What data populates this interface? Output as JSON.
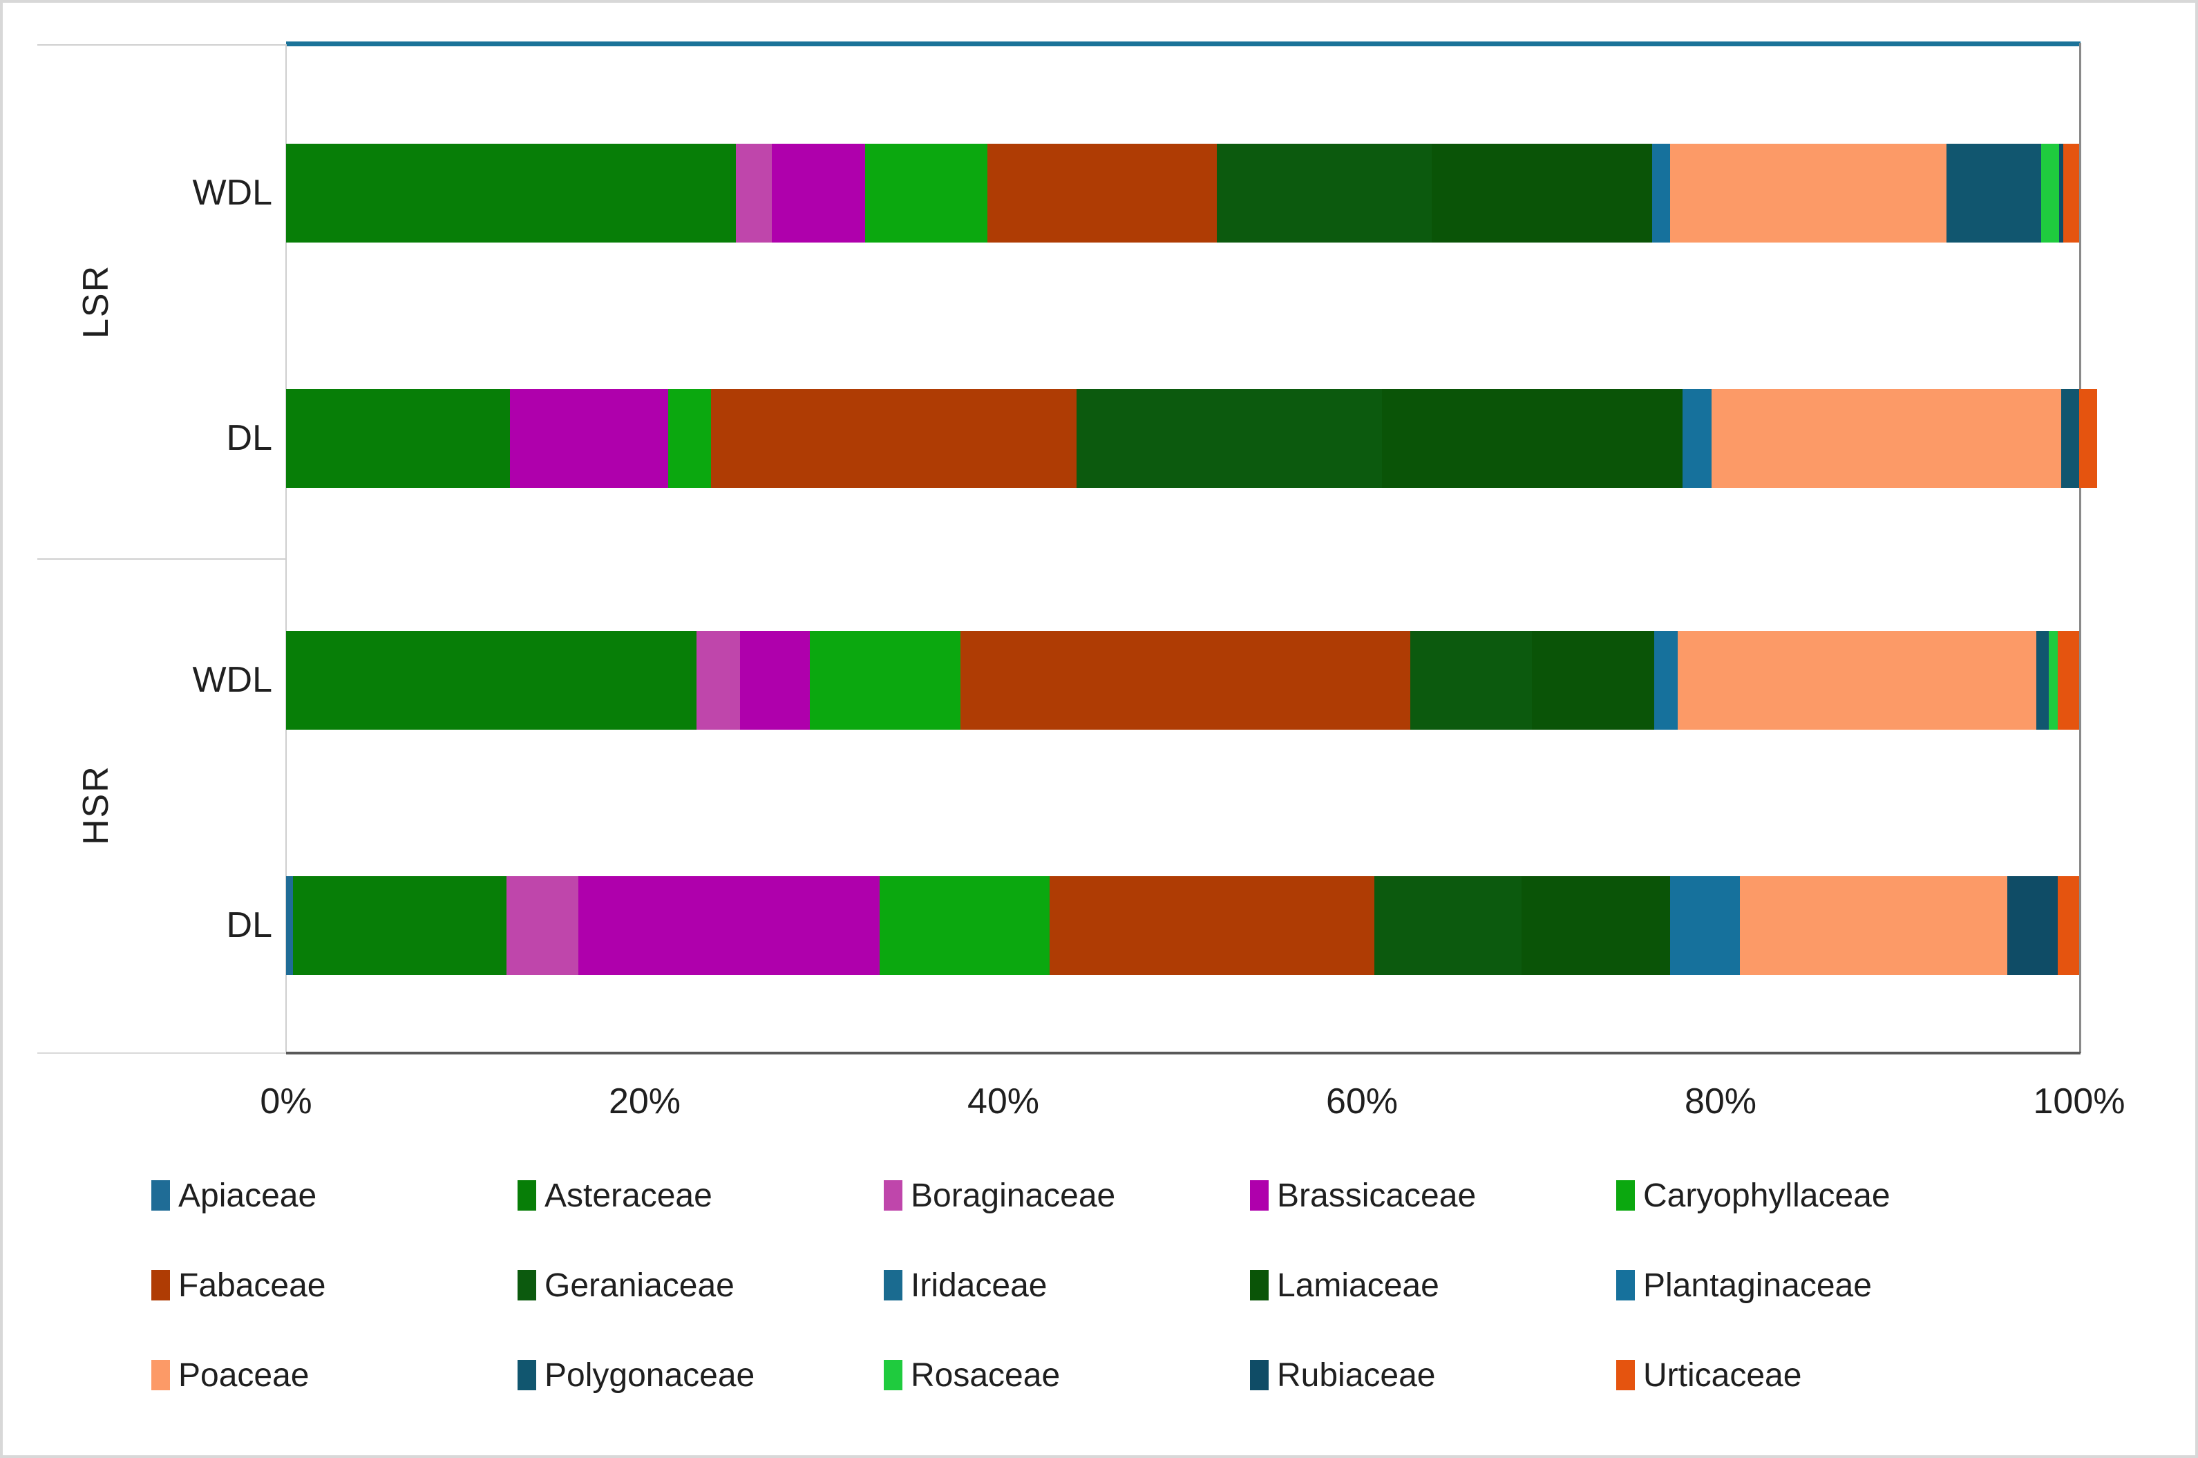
{
  "chart_data": {
    "type": "bar",
    "orientation": "horizontal",
    "stacked": true,
    "stacked_mode": "percent",
    "title": "",
    "xlabel": "",
    "ylabel": "",
    "grid": false,
    "legend_position": "bottom",
    "x_axis": {
      "min": 0,
      "max": 100,
      "unit": "%",
      "ticks": [
        "0%",
        "20%",
        "40%",
        "60%",
        "80%",
        "100%"
      ]
    },
    "group_labels": [
      "LSR",
      "HSR"
    ],
    "row_labels": [
      "WDL",
      "DL",
      "WDL",
      "DL"
    ],
    "categories": [
      "LSR WDL",
      "LSR DL",
      "HSR WDL",
      "HSR DL"
    ],
    "series": [
      {
        "name": "Apiaceae",
        "color": "#1F6C96",
        "values": [
          0,
          0,
          0,
          0.4
        ]
      },
      {
        "name": "Asteraceae",
        "color": "#077E07",
        "values": [
          25.1,
          12.5,
          22.9,
          11.9
        ]
      },
      {
        "name": "Boraginaceae",
        "color": "#BF46AB",
        "values": [
          2.0,
          0,
          2.4,
          4.0
        ]
      },
      {
        "name": "Brassicaceae",
        "color": "#AF00AC",
        "values": [
          5.2,
          8.8,
          3.9,
          16.8
        ]
      },
      {
        "name": "Caryophyllaceae",
        "color": "#0BA80F",
        "values": [
          6.8,
          2.4,
          8.4,
          9.5
        ]
      },
      {
        "name": "Fabaceae",
        "color": "#AF3C04",
        "values": [
          12.8,
          20.4,
          25.1,
          18.1
        ]
      },
      {
        "name": "Geraniaceae",
        "color": "#0C5A0E",
        "values": [
          12.0,
          17.0,
          6.8,
          8.2
        ]
      },
      {
        "name": "Iridaceae",
        "color": "#1A6B90",
        "values": [
          0,
          0,
          0,
          0
        ]
      },
      {
        "name": "Lamiaceae",
        "color": "#0A5407",
        "values": [
          12.3,
          16.8,
          6.8,
          8.3
        ]
      },
      {
        "name": "Plantaginaceae",
        "color": "#16719C",
        "values": [
          1.0,
          1.6,
          1.3,
          3.9
        ]
      },
      {
        "name": "Poaceae",
        "color": "#FC9A67",
        "values": [
          15.4,
          19.5,
          20.0,
          14.9
        ]
      },
      {
        "name": "Polygonaceae",
        "color": "#11566F",
        "values": [
          5.3,
          1.0,
          0.7,
          0
        ]
      },
      {
        "name": "Rosaceae",
        "color": "#1FCB3E",
        "values": [
          1.0,
          0,
          0.5,
          0
        ]
      },
      {
        "name": "Rubiaceae",
        "color": "#0F4C66",
        "values": [
          0.2,
          0,
          0,
          2.8
        ]
      },
      {
        "name": "Urticaceae",
        "color": "#E5540F",
        "values": [
          0.9,
          1.0,
          1.2,
          1.2
        ]
      }
    ],
    "accent_colors": {
      "plot_top_line": "#1B7399",
      "axis_line_dark": "#595959",
      "axis_line_light": "#CFCFCF",
      "plot_right_border": "#8A8A8A"
    }
  }
}
